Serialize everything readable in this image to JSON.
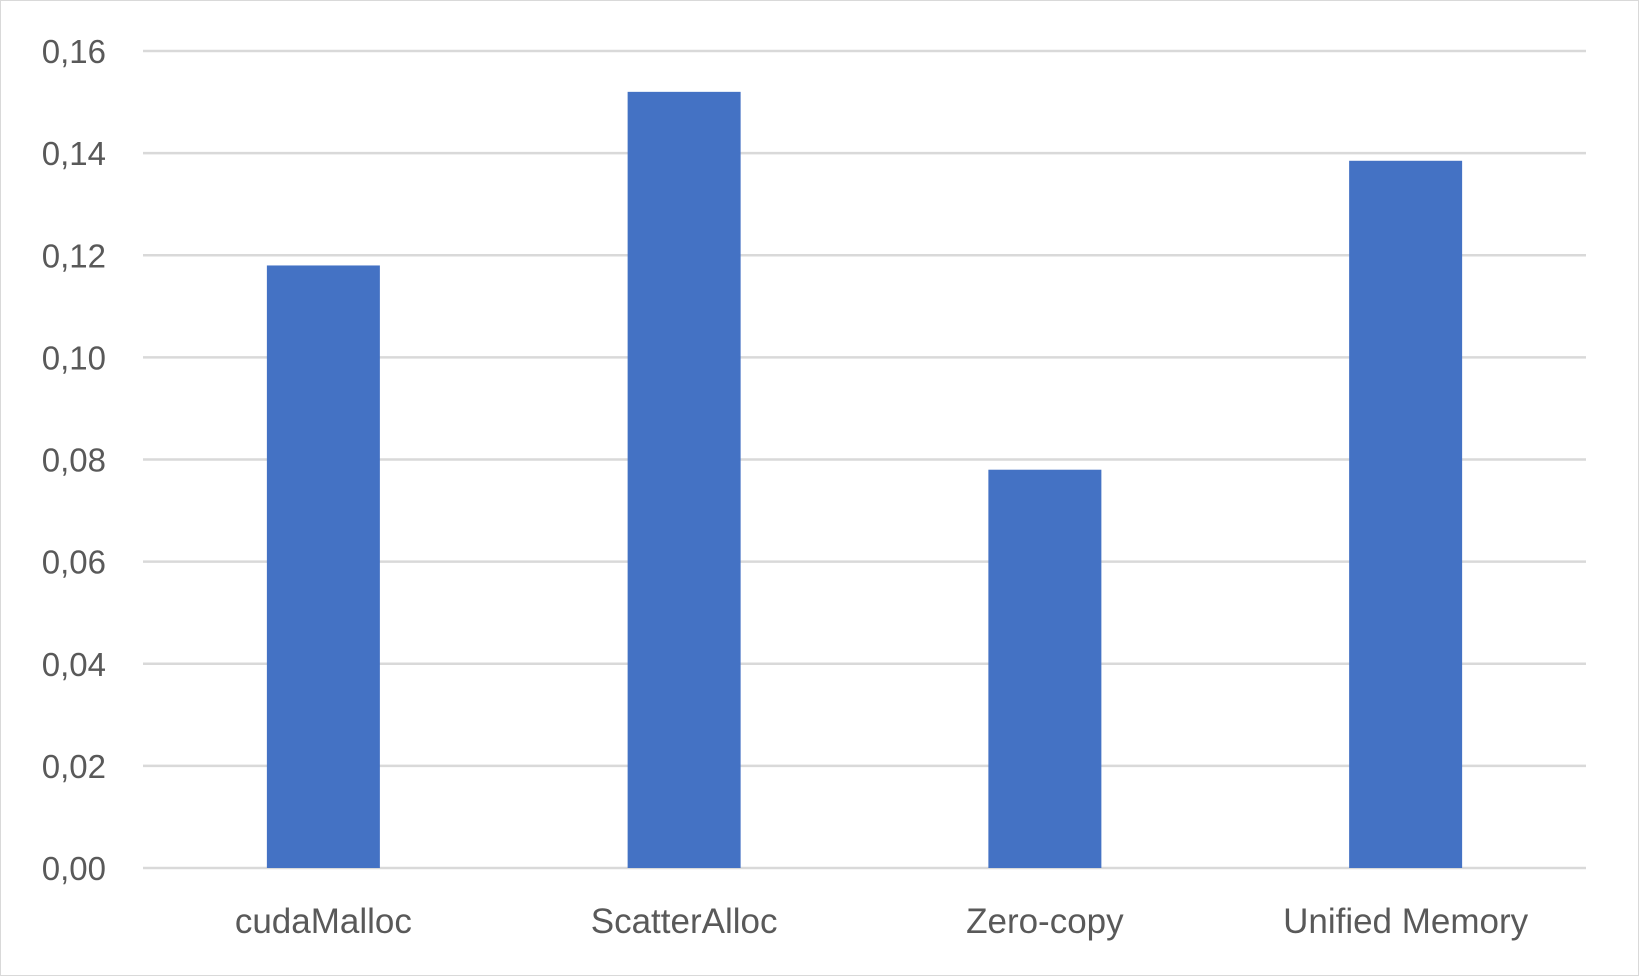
{
  "chart_data": {
    "type": "bar",
    "title": "",
    "xlabel": "",
    "ylabel": "",
    "categories": [
      "cudaMalloc",
      "ScatterAlloc",
      "Zero-copy",
      "Unified Memory"
    ],
    "values": [
      0.118,
      0.152,
      0.078,
      0.1385
    ],
    "ylim": [
      0,
      0.16
    ],
    "yticks": [
      0.0,
      0.02,
      0.04,
      0.06,
      0.08,
      0.1,
      0.12,
      0.14,
      0.16
    ],
    "ytick_labels": [
      "0,00",
      "0,02",
      "0,04",
      "0,06",
      "0,08",
      "0,10",
      "0,12",
      "0,14",
      "0,16"
    ],
    "grid": true,
    "legend": "none",
    "bar_color": "#4472c4",
    "grid_color": "#d9d9d9",
    "text_color": "#595959"
  }
}
